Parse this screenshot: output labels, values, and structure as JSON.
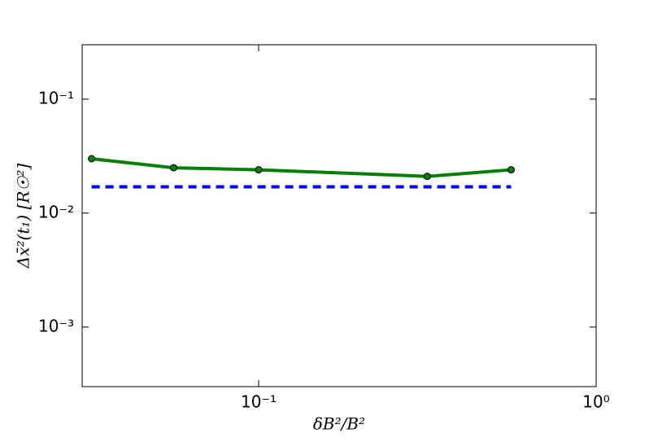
{
  "chart_data": {
    "type": "line",
    "x_label": "δB²/B²",
    "y_label": "Δx̄²(t₁) [R☉²]",
    "x_scale": "log",
    "y_scale": "log",
    "xlim": [
      0.03,
      1
    ],
    "ylim": [
      0.0003,
      0.3
    ],
    "xticks": [
      {
        "value": 0.1,
        "label": "10⁻¹"
      },
      {
        "value": 1,
        "label": "10⁰"
      }
    ],
    "yticks": [
      {
        "value": 0.001,
        "label": "10⁻³"
      },
      {
        "value": 0.01,
        "label": "10⁻²"
      },
      {
        "value": 0.1,
        "label": "10⁻¹"
      }
    ],
    "grid": false,
    "series": [
      {
        "color": "#008000",
        "style": "solid",
        "marker": true,
        "x": [
          0.032,
          0.056,
          0.1,
          0.316,
          0.56
        ],
        "values": [
          0.03,
          0.025,
          0.024,
          0.021,
          0.024
        ]
      },
      {
        "color": "#0000ff",
        "style": "dashed",
        "marker": false,
        "x": [
          0.032,
          0.56
        ],
        "values": [
          0.017,
          0.017
        ]
      }
    ]
  }
}
